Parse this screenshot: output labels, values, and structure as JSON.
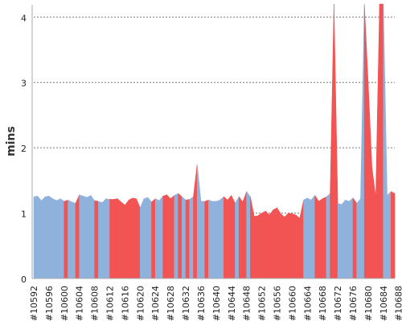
{
  "chart_data": {
    "type": "area",
    "title": "",
    "xlabel": "",
    "ylabel": "mins",
    "ylim": [
      0,
      4.2
    ],
    "yticks": [
      0,
      1,
      2,
      3,
      4
    ],
    "grid": true,
    "colors": {
      "blue": "#8fb2dc",
      "red": "#f25454",
      "grid": "#777777"
    },
    "x_first": 10592,
    "x_label_prefix": "#",
    "xtick_labels": [
      "#10592",
      "#10596",
      "#10600",
      "#10604",
      "#10608",
      "#10612",
      "#10616",
      "#10620",
      "#10624",
      "#10628",
      "#10632",
      "#10636",
      "#10640",
      "#10644",
      "#10648",
      "#10652",
      "#10656",
      "#10660",
      "#10664",
      "#10668",
      "#10672",
      "#10676",
      "#10680",
      "#10684",
      "#10688"
    ],
    "values": [
      1.25,
      1.26,
      1.19,
      1.25,
      1.26,
      1.22,
      1.19,
      1.22,
      1.18,
      1.2,
      1.17,
      1.15,
      1.28,
      1.26,
      1.24,
      1.27,
      1.19,
      1.18,
      1.16,
      1.22,
      1.21,
      1.21,
      1.22,
      1.17,
      1.12,
      1.2,
      1.23,
      1.22,
      1.08,
      1.22,
      1.24,
      1.17,
      1.22,
      1.19,
      1.26,
      1.28,
      1.22,
      1.27,
      1.3,
      1.25,
      1.2,
      1.21,
      1.25,
      1.75,
      1.18,
      1.18,
      1.2,
      1.18,
      1.18,
      1.2,
      1.25,
      1.2,
      1.27,
      1.15,
      1.25,
      1.17,
      1.33,
      1.25,
      0.95,
      0.96,
      1.0,
      1.03,
      0.97,
      1.05,
      1.08,
      0.99,
      0.94,
      1.0,
      0.99,
      0.97,
      0.92,
      1.2,
      1.23,
      1.2,
      1.27,
      1.18,
      1.22,
      1.25,
      1.3,
      4.2,
      1.15,
      1.13,
      1.2,
      1.18,
      1.23,
      1.15,
      1.22,
      4.2,
      3.0,
      1.7,
      1.25,
      4.2,
      4.2,
      1.27,
      1.33,
      1.3
    ],
    "colors_by_point": [
      "b",
      "b",
      "b",
      "b",
      "b",
      "b",
      "b",
      "b",
      "r",
      "b",
      "b",
      "r",
      "b",
      "b",
      "b",
      "b",
      "r",
      "b",
      "b",
      "b",
      "r",
      "r",
      "r",
      "r",
      "r",
      "r",
      "r",
      "r",
      "b",
      "b",
      "b",
      "r",
      "b",
      "b",
      "r",
      "r",
      "r",
      "b",
      "r",
      "b",
      "r",
      "b",
      "r",
      "b",
      "b",
      "r",
      "b",
      "b",
      "b",
      "b",
      "r",
      "r",
      "r",
      "b",
      "r",
      "r",
      "b",
      "r",
      "r",
      "r",
      "r",
      "r",
      "r",
      "r",
      "r",
      "r",
      "r",
      "r",
      "r",
      "r",
      "r",
      "b",
      "b",
      "b",
      "r",
      "r",
      "r",
      "b",
      "r",
      "r",
      "b",
      "b",
      "b",
      "b",
      "r",
      "b",
      "b",
      "r",
      "r",
      "r",
      "r",
      "r",
      "b",
      "b",
      "r",
      "b"
    ]
  }
}
